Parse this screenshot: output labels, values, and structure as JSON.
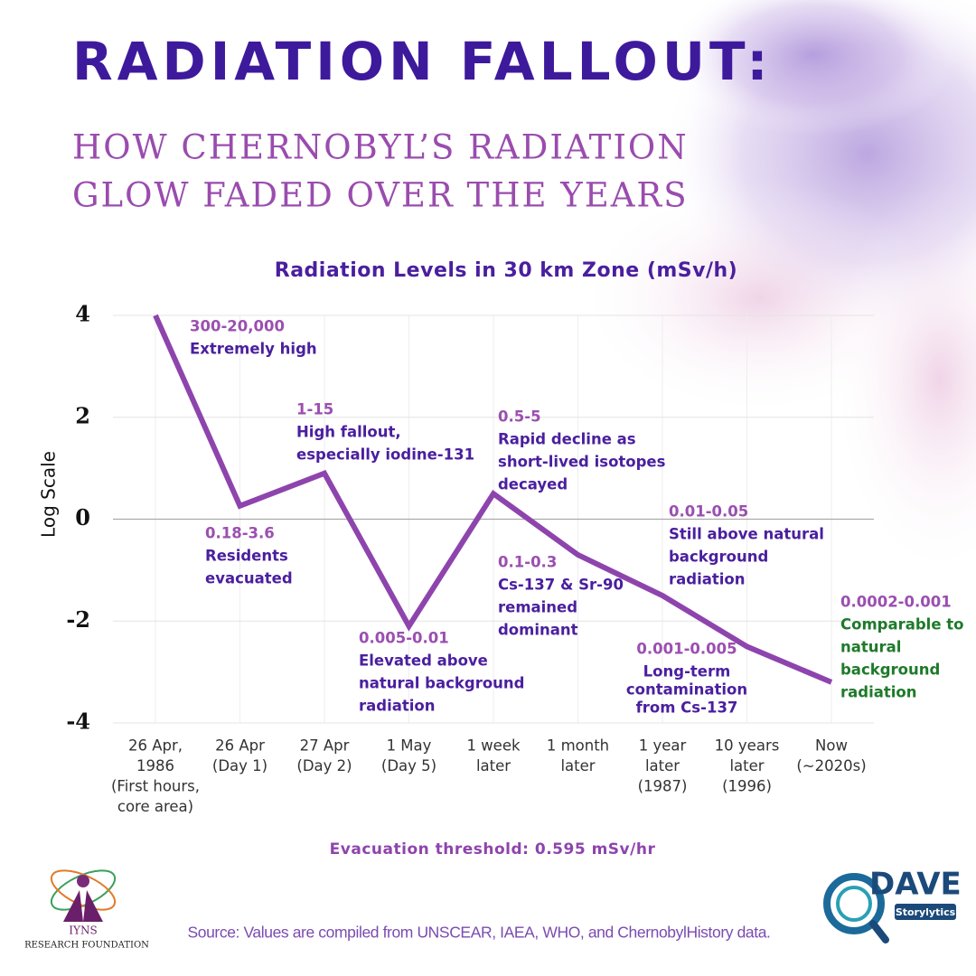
{
  "header": {
    "title": "RADIATION FALLOUT:",
    "subtitle": [
      "HOW CHERNOBYL’S RADIATION",
      "GLOW FADED OVER THE YEARS"
    ]
  },
  "chart_data": {
    "type": "line",
    "title": "Radiation Levels in 30 km Zone (mSv/h)",
    "y_label": "Log Scale",
    "categories": [
      [
        "26 Apr,",
        "1986",
        "(First hours,",
        "core area)"
      ],
      [
        "26 Apr",
        "(Day 1)"
      ],
      [
        "27 Apr",
        "(Day 2)"
      ],
      [
        "1 May",
        "(Day 5)"
      ],
      [
        "1 week",
        "later"
      ],
      [
        "1 month",
        "later"
      ],
      [
        "1 year",
        "later",
        "(1987)"
      ],
      [
        "10 years",
        "later",
        "(1996)"
      ],
      [
        "Now",
        "(~2020s)"
      ]
    ],
    "values": [
      4,
      0.26,
      0.9,
      -2.1,
      0.5,
      -0.7,
      -1.5,
      -2.5,
      -3.2
    ],
    "color": "#8e44ad",
    "ylim": [
      -4,
      4
    ],
    "yticks": [
      4,
      2,
      0,
      -2,
      -4
    ],
    "grid": true,
    "annotations": [
      {
        "range": "300-20,000",
        "text": [
          "Extremely high"
        ],
        "color": "#4a1f9e"
      },
      {
        "range": "0.18-3.6",
        "text": [
          "Residents",
          "evacuated"
        ],
        "color": "#4a1f9e"
      },
      {
        "range": "1-15",
        "text": [
          "High fallout,",
          "especially iodine-131"
        ],
        "color": "#4a1f9e"
      },
      {
        "range": "0.005-0.01",
        "text": [
          "Elevated above",
          "natural background",
          "radiation"
        ],
        "color": "#4a1f9e"
      },
      {
        "range": "0.5-5",
        "text": [
          "Rapid decline as",
          "short-lived isotopes",
          "decayed"
        ],
        "color": "#4a1f9e"
      },
      {
        "range": "0.1-0.3",
        "text": [
          "Cs-137 & Sr-90",
          "remained",
          "dominant"
        ],
        "color": "#4a1f9e"
      },
      {
        "range": "0.01-0.05",
        "text": [
          "Still above natural",
          "background",
          "radiation"
        ],
        "color": "#4a1f9e"
      },
      {
        "range": "0.001-0.005",
        "text": [
          "Long-term",
          "contamination",
          "from Cs-137"
        ],
        "color": "#4a1f9e"
      },
      {
        "range": "0.0002-0.001",
        "text": [
          "Comparable to",
          "natural",
          "background",
          "radiation"
        ],
        "color": "#1e7a2a"
      }
    ],
    "range_color": "#9b4fb0"
  },
  "footer": {
    "note": "Evacuation threshold: 0.595 mSv/hr",
    "source": "Source: Values are compiled from UNSCEAR, IAEA, WHO, and ChernobylHistory data."
  },
  "logos": {
    "left": [
      "IYNS",
      "RESEARCH FOUNDATION"
    ],
    "right": [
      "DAVE",
      "Storylytics"
    ]
  }
}
